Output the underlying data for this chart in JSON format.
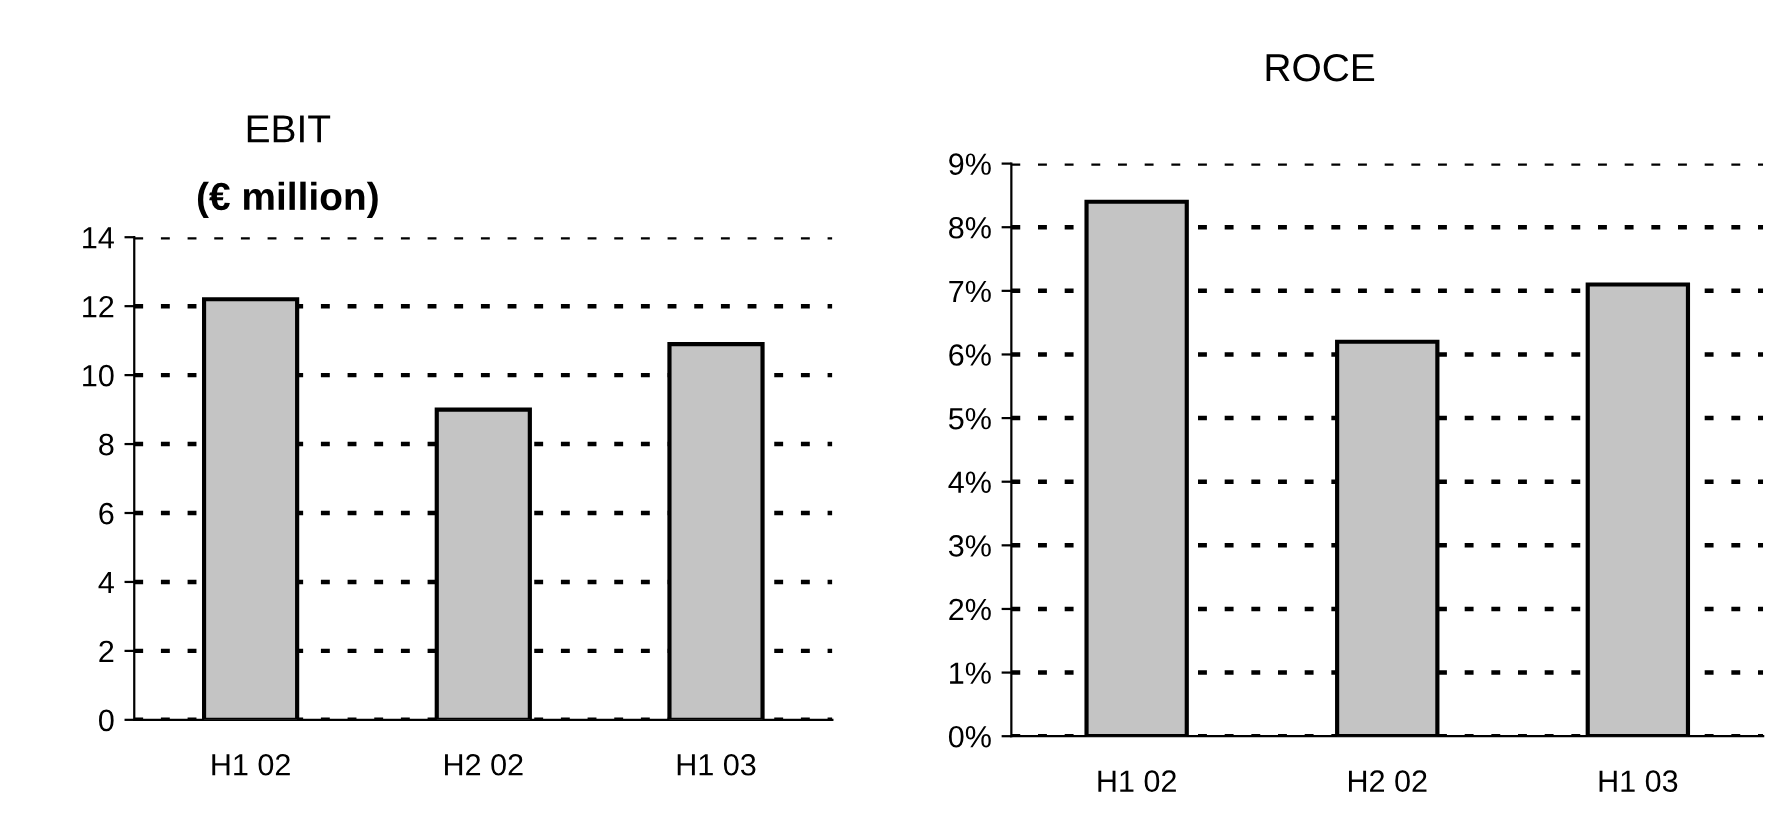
{
  "chart_data": [
    {
      "type": "bar",
      "title": "EBIT",
      "subtitle": "(€ million)",
      "categories": [
        "H1 02",
        "H2 02",
        "H1 03"
      ],
      "values": [
        12.2,
        9.0,
        10.9
      ],
      "color": "#c4c4c4",
      "ylim": [
        0,
        14
      ],
      "yticks": [
        0,
        2,
        4,
        6,
        8,
        10,
        12,
        14
      ],
      "grid": "y"
    },
    {
      "type": "bar",
      "title": "ROCE",
      "categories": [
        "H1 02",
        "H2 02",
        "H1 03"
      ],
      "values": [
        8.4,
        6.2,
        7.1
      ],
      "color": "#c4c4c4",
      "ylim": [
        0,
        9
      ],
      "yticks": [
        {
          "value": 0,
          "label": "0%"
        },
        {
          "value": 1,
          "label": "1%"
        },
        {
          "value": 2,
          "label": "2%"
        },
        {
          "value": 3,
          "label": "3%"
        },
        {
          "value": 4,
          "label": "4%"
        },
        {
          "value": 5,
          "label": "5%"
        },
        {
          "value": 6,
          "label": "6%"
        },
        {
          "value": 7,
          "label": "7%"
        },
        {
          "value": 8,
          "label": "8%"
        },
        {
          "value": 9,
          "label": "9%"
        }
      ],
      "grid": "y"
    }
  ]
}
